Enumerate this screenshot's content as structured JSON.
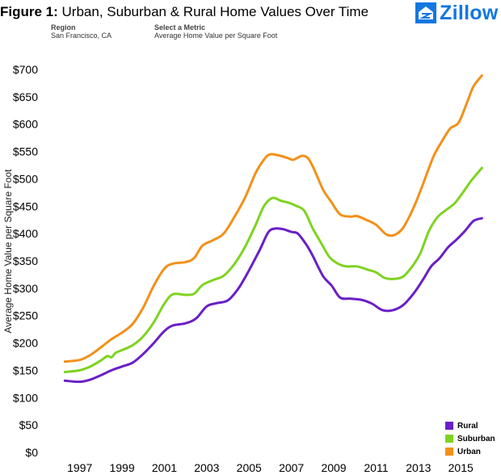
{
  "header": {
    "figure_label": "Figure 1:",
    "title": "Urban, Suburban & Rural Home Values Over Time",
    "region_label": "Region",
    "region_value": "San Francisco, CA",
    "metric_label": "Select a Metric",
    "metric_value": "Average Home Value per Square Foot",
    "brand": "Zillow",
    "brand_icon": "zillow-house-icon",
    "brand_color": "#1277e1"
  },
  "chart_data": {
    "type": "line",
    "ylabel": "Average Home Value per Square Foot",
    "xlabel": "",
    "xlim": [
      1995.6,
      2016.9
    ],
    "ylim": [
      0,
      700
    ],
    "y_ticks": [
      0,
      50,
      100,
      150,
      200,
      250,
      300,
      350,
      400,
      450,
      500,
      550,
      600,
      650,
      700
    ],
    "y_tick_labels": [
      "$0",
      "$50",
      "$100",
      "$150",
      "$200",
      "$250",
      "$300",
      "$350",
      "$400",
      "$450",
      "$500",
      "$550",
      "$600",
      "$650",
      "$700"
    ],
    "x_ticks": [
      1997,
      1999,
      2001,
      2003,
      2005,
      2007,
      2009,
      2011,
      2013,
      2015
    ],
    "x_tick_labels": [
      "1997",
      "1999",
      "2001",
      "2003",
      "2005",
      "2007",
      "2009",
      "2011",
      "2013",
      "2015"
    ],
    "grid": false,
    "legend_position": "bottom-right",
    "series": [
      {
        "name": "Rural",
        "color": "#6a1fc7",
        "points": [
          [
            1996.3,
            131
          ],
          [
            1997.0,
            129
          ],
          [
            1997.5,
            133
          ],
          [
            1998.0,
            141
          ],
          [
            1998.5,
            150
          ],
          [
            1999.0,
            157
          ],
          [
            1999.5,
            164
          ],
          [
            2000.0,
            180
          ],
          [
            2000.5,
            200
          ],
          [
            2001.0,
            222
          ],
          [
            2001.4,
            232
          ],
          [
            2002.0,
            236
          ],
          [
            2002.5,
            245
          ],
          [
            2003.0,
            267
          ],
          [
            2003.5,
            273
          ],
          [
            2004.0,
            278
          ],
          [
            2004.5,
            300
          ],
          [
            2005.0,
            333
          ],
          [
            2005.5,
            370
          ],
          [
            2005.9,
            402
          ],
          [
            2006.2,
            409
          ],
          [
            2006.6,
            408
          ],
          [
            2007.0,
            403
          ],
          [
            2007.3,
            400
          ],
          [
            2007.7,
            380
          ],
          [
            2008.0,
            360
          ],
          [
            2008.5,
            322
          ],
          [
            2008.9,
            305
          ],
          [
            2009.3,
            283
          ],
          [
            2009.8,
            281
          ],
          [
            2010.3,
            279
          ],
          [
            2010.8,
            272
          ],
          [
            2011.3,
            260
          ],
          [
            2011.8,
            260
          ],
          [
            2012.3,
            270
          ],
          [
            2012.8,
            292
          ],
          [
            2013.2,
            315
          ],
          [
            2013.6,
            340
          ],
          [
            2014.0,
            355
          ],
          [
            2014.4,
            375
          ],
          [
            2014.8,
            389
          ],
          [
            2015.2,
            405
          ],
          [
            2015.6,
            423
          ],
          [
            2016.0,
            428
          ]
        ]
      },
      {
        "name": "Suburban",
        "color": "#7ed321",
        "points": [
          [
            1996.3,
            147
          ],
          [
            1997.0,
            150
          ],
          [
            1997.5,
            157
          ],
          [
            1998.0,
            168
          ],
          [
            1998.3,
            176
          ],
          [
            1998.5,
            174
          ],
          [
            1998.7,
            182
          ],
          [
            1999.0,
            187
          ],
          [
            1999.5,
            196
          ],
          [
            2000.0,
            212
          ],
          [
            2000.5,
            238
          ],
          [
            2001.0,
            272
          ],
          [
            2001.4,
            289
          ],
          [
            2002.0,
            288
          ],
          [
            2002.4,
            290
          ],
          [
            2002.8,
            306
          ],
          [
            2003.3,
            315
          ],
          [
            2003.8,
            323
          ],
          [
            2004.3,
            344
          ],
          [
            2004.8,
            375
          ],
          [
            2005.3,
            415
          ],
          [
            2005.7,
            450
          ],
          [
            2006.1,
            465
          ],
          [
            2006.5,
            460
          ],
          [
            2006.9,
            456
          ],
          [
            2007.2,
            451
          ],
          [
            2007.6,
            442
          ],
          [
            2008.0,
            410
          ],
          [
            2008.4,
            383
          ],
          [
            2008.8,
            357
          ],
          [
            2009.2,
            345
          ],
          [
            2009.6,
            340
          ],
          [
            2010.1,
            340
          ],
          [
            2010.6,
            334
          ],
          [
            2011.0,
            329
          ],
          [
            2011.4,
            319
          ],
          [
            2011.8,
            317
          ],
          [
            2012.3,
            322
          ],
          [
            2012.8,
            345
          ],
          [
            2013.1,
            365
          ],
          [
            2013.5,
            405
          ],
          [
            2013.9,
            430
          ],
          [
            2014.3,
            443
          ],
          [
            2014.7,
            455
          ],
          [
            2015.1,
            475
          ],
          [
            2015.5,
            497
          ],
          [
            2016.0,
            520
          ]
        ]
      },
      {
        "name": "Urban",
        "color": "#f39019",
        "points": [
          [
            1996.3,
            166
          ],
          [
            1997.0,
            169
          ],
          [
            1997.5,
            178
          ],
          [
            1998.0,
            192
          ],
          [
            1998.5,
            207
          ],
          [
            1999.0,
            219
          ],
          [
            1999.5,
            235
          ],
          [
            2000.0,
            265
          ],
          [
            2000.5,
            305
          ],
          [
            2001.0,
            336
          ],
          [
            2001.4,
            345
          ],
          [
            2002.0,
            348
          ],
          [
            2002.4,
            355
          ],
          [
            2002.8,
            378
          ],
          [
            2003.3,
            388
          ],
          [
            2003.8,
            400
          ],
          [
            2004.3,
            430
          ],
          [
            2004.8,
            465
          ],
          [
            2005.3,
            510
          ],
          [
            2005.7,
            535
          ],
          [
            2006.0,
            545
          ],
          [
            2006.5,
            542
          ],
          [
            2006.9,
            537
          ],
          [
            2007.1,
            535
          ],
          [
            2007.5,
            542
          ],
          [
            2007.8,
            537
          ],
          [
            2008.1,
            515
          ],
          [
            2008.5,
            480
          ],
          [
            2008.9,
            457
          ],
          [
            2009.3,
            435
          ],
          [
            2009.8,
            431
          ],
          [
            2010.1,
            432
          ],
          [
            2010.6,
            424
          ],
          [
            2011.0,
            416
          ],
          [
            2011.5,
            398
          ],
          [
            2011.9,
            398
          ],
          [
            2012.3,
            412
          ],
          [
            2012.8,
            450
          ],
          [
            2013.2,
            489
          ],
          [
            2013.7,
            540
          ],
          [
            2014.1,
            568
          ],
          [
            2014.5,
            592
          ],
          [
            2014.9,
            603
          ],
          [
            2015.3,
            640
          ],
          [
            2015.6,
            669
          ],
          [
            2016.0,
            689
          ]
        ]
      }
    ]
  }
}
